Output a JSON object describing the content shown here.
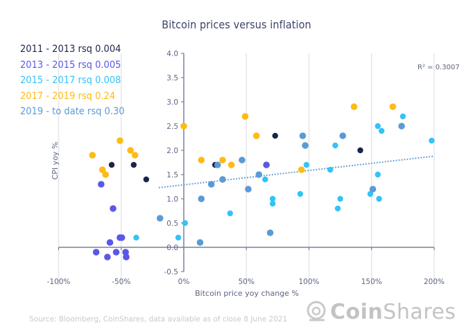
{
  "chart_data": {
    "type": "scatter",
    "title": "Bitcoin prices versus inflation",
    "xlabel": "Bitcoin price yoy change %",
    "ylabel": "CPI yoy %",
    "xlim": [
      -100,
      200
    ],
    "ylim": [
      -0.5,
      4.0
    ],
    "x_ticks": [
      -100,
      -50,
      0,
      50,
      100,
      150,
      200
    ],
    "x_tick_labels": [
      "-100%",
      "-50%",
      "0%",
      "50%",
      "100%",
      "150%",
      "200%"
    ],
    "y_ticks": [
      -0.5,
      0.0,
      0.5,
      1.0,
      1.5,
      2.0,
      2.5,
      3.0,
      3.5,
      4.0
    ],
    "y_tick_labels": [
      "-0.5",
      "0.0",
      "0.5",
      "1.0",
      "1.5",
      "2.0",
      "2.5",
      "3.0",
      "3.5",
      "4.0"
    ],
    "grid": "vertical",
    "legend_position": "top-left",
    "annotation": "R² = 0.3007",
    "trendline": {
      "style": "dotted",
      "color": "#5b9bd5",
      "x": [
        -20,
        200
      ],
      "y": [
        1.23,
        1.88
      ]
    },
    "series": [
      {
        "name": "2011 - 2013 rsq 0.004",
        "color": "#1c2448",
        "points": [
          [
            -57.6,
            1.7
          ],
          [
            -40,
            1.7
          ],
          [
            -30,
            1.4
          ],
          [
            25,
            1.7
          ],
          [
            73,
            2.3
          ],
          [
            141,
            2.0
          ]
        ]
      },
      {
        "name": "2013 - 2015 rsq 0.005",
        "color": "#5b57e8",
        "points": [
          [
            -66,
            1.3
          ],
          [
            -56.5,
            0.8
          ],
          [
            -51,
            0.2
          ],
          [
            -49.5,
            0.2
          ],
          [
            -59,
            0.1
          ],
          [
            -70,
            -0.1
          ],
          [
            -54,
            -0.1
          ],
          [
            -46.5,
            -0.1
          ],
          [
            -61,
            -0.2
          ],
          [
            -46,
            -0.2
          ],
          [
            66,
            1.7
          ]
        ]
      },
      {
        "name": "2015 - 2017 rsq 0.008",
        "color": "#33c3f7",
        "points": [
          [
            -38,
            0.2
          ],
          [
            -4.4,
            0.2
          ],
          [
            1,
            0.5
          ],
          [
            37,
            0.7
          ],
          [
            65,
            1.4
          ],
          [
            71,
            1.0
          ],
          [
            71,
            0.9
          ],
          [
            93,
            1.1
          ],
          [
            98,
            1.7
          ],
          [
            117,
            1.6
          ],
          [
            121,
            2.1
          ],
          [
            123,
            0.8
          ],
          [
            125,
            1.0
          ],
          [
            149,
            1.1
          ],
          [
            155,
            1.5
          ],
          [
            155,
            2.5
          ],
          [
            156,
            1.0
          ],
          [
            158,
            2.4
          ],
          [
            175,
            2.7
          ],
          [
            198,
            2.2
          ]
        ]
      },
      {
        "name": "2017 - 2019 rsq 0.24",
        "color": "#fdbb14",
        "points": [
          [
            -73,
            1.9
          ],
          [
            -65,
            1.6
          ],
          [
            -62.5,
            1.5
          ],
          [
            -51,
            2.2
          ],
          [
            -42.6,
            2.0
          ],
          [
            -39,
            1.9
          ],
          [
            0,
            2.5
          ],
          [
            14,
            1.8
          ],
          [
            31,
            1.8
          ],
          [
            38,
            1.7
          ],
          [
            49,
            2.7
          ],
          [
            58,
            2.3
          ],
          [
            94,
            1.6
          ],
          [
            136,
            2.9
          ],
          [
            167,
            2.9
          ]
        ]
      },
      {
        "name": "2019 - to date rsq 0.30",
        "color": "#5b9bd5",
        "points": [
          [
            -19,
            0.6
          ],
          [
            13,
            0.1
          ],
          [
            14,
            1.0
          ],
          [
            22,
            1.3
          ],
          [
            27,
            1.7
          ],
          [
            31,
            1.4
          ],
          [
            46.5,
            1.8
          ],
          [
            51.5,
            1.2
          ],
          [
            60,
            1.5
          ],
          [
            69,
            0.3
          ],
          [
            95,
            2.3
          ],
          [
            97,
            2.1
          ],
          [
            127,
            2.3
          ],
          [
            151,
            1.2
          ],
          [
            174,
            2.5
          ]
        ]
      }
    ]
  },
  "footer": {
    "source": "Source: Bloomberg, CoinShares, data available as of close 8 June 2021",
    "brand_bold": "Coin",
    "brand_light": "Shares",
    "logo_icon": "astronaut-helmet-icon"
  }
}
